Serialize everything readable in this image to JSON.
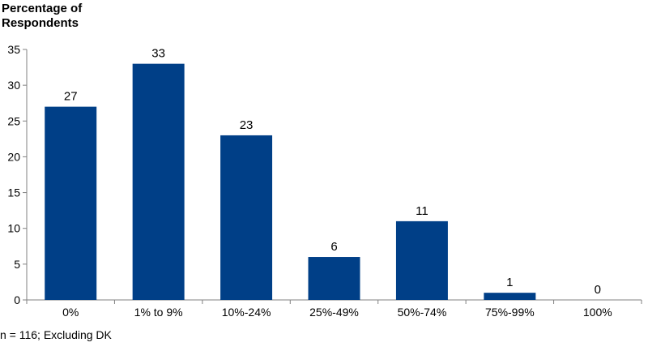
{
  "chart_data": {
    "type": "bar",
    "ylabel": "Percentage of Respondents",
    "xlabel": "",
    "title": "",
    "categories": [
      "0%",
      "1% to 9%",
      "10%-24%",
      "25%-49%",
      "50%-74%",
      "75%-99%",
      "100%"
    ],
    "values": [
      27,
      33,
      23,
      6,
      11,
      1,
      0
    ],
    "data_labels": [
      "27",
      "33",
      "23",
      "6",
      "11",
      "1",
      "0"
    ],
    "ylim": [
      0,
      35
    ],
    "yticks": [
      0,
      5,
      10,
      15,
      20,
      25,
      30,
      35
    ],
    "grid": false,
    "legend": "none",
    "bar_color": "#003F87"
  },
  "footnote": "n = 116; Excluding DK"
}
